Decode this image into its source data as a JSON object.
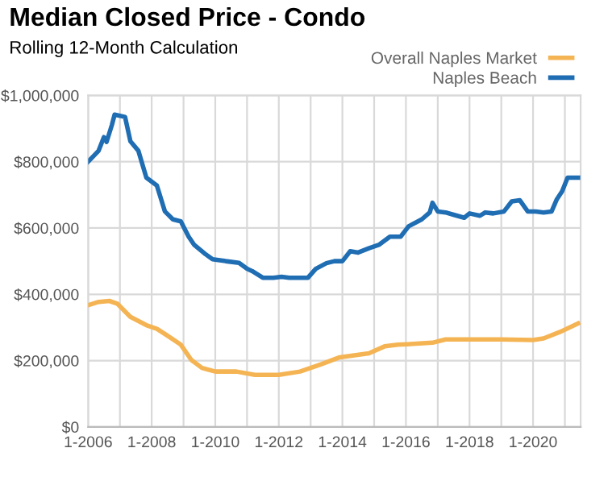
{
  "chart_data": {
    "type": "line",
    "title": "Median Closed Price - Condo",
    "subtitle": "Rolling 12-Month Calculation",
    "series": [
      {
        "name": "Overall Naples Market",
        "color": "#f5b453",
        "x": [
          "2006-01",
          "2006-05",
          "2006-09",
          "2006-12",
          "2007-05",
          "2007-11",
          "2008-03",
          "2008-07",
          "2008-12",
          "2009-04",
          "2009-08",
          "2010-01",
          "2010-09",
          "2011-04",
          "2012-01",
          "2012-09",
          "2013-05",
          "2013-12",
          "2014-11",
          "2015-05",
          "2015-10",
          "2016-05",
          "2016-11",
          "2017-04",
          "2018-01",
          "2019-01",
          "2020-01",
          "2020-05",
          "2020-11",
          "2021-06"
        ],
        "values": [
          367000,
          377000,
          380000,
          372000,
          332000,
          307000,
          296000,
          275000,
          248000,
          202000,
          178000,
          167000,
          167000,
          157000,
          157000,
          167000,
          189000,
          210000,
          222000,
          243000,
          248000,
          251000,
          254000,
          264000,
          264000,
          264000,
          262000,
          267000,
          286000,
          312000
        ]
      },
      {
        "name": "Naples Beach",
        "color": "#1f6db3",
        "x": [
          "2006-01",
          "2006-05",
          "2006-07",
          "2006-08",
          "2006-10",
          "2006-11",
          "2007-03",
          "2007-05",
          "2007-08",
          "2007-11",
          "2008-03",
          "2008-06",
          "2008-09",
          "2008-12",
          "2009-03",
          "2009-05",
          "2009-09",
          "2009-12",
          "2010-05",
          "2010-10",
          "2011-01",
          "2011-03",
          "2011-07",
          "2011-11",
          "2012-02",
          "2012-05",
          "2012-12",
          "2013-03",
          "2013-07",
          "2013-10",
          "2014-01",
          "2014-04",
          "2014-07",
          "2014-11",
          "2015-03",
          "2015-07",
          "2015-11",
          "2016-02",
          "2016-07",
          "2016-10",
          "2016-11",
          "2017-01",
          "2017-04",
          "2017-07",
          "2017-11",
          "2018-01",
          "2018-05",
          "2018-07",
          "2018-10",
          "2019-02",
          "2019-05",
          "2019-08",
          "2019-11",
          "2020-02",
          "2020-05",
          "2020-08",
          "2020-10",
          "2020-12",
          "2021-02",
          "2021-06"
        ],
        "values": [
          800000,
          833000,
          874000,
          860000,
          911000,
          942000,
          935000,
          862000,
          833000,
          752000,
          728000,
          650000,
          626000,
          620000,
          574000,
          550000,
          523000,
          506000,
          500000,
          495000,
          477000,
          470000,
          450000,
          450000,
          453000,
          450000,
          450000,
          477000,
          494000,
          500000,
          500000,
          530000,
          526000,
          539000,
          550000,
          574000,
          574000,
          605000,
          626000,
          647000,
          676000,
          650000,
          647000,
          640000,
          631000,
          644000,
          637000,
          647000,
          644000,
          650000,
          680000,
          684000,
          650000,
          650000,
          647000,
          650000,
          687000,
          711000,
          752000,
          752000
        ]
      }
    ],
    "xlim": [
      "2006-01",
      "2021-07"
    ],
    "xticks": [
      {
        "value": "2006-01",
        "label": "1-2006"
      },
      {
        "value": "2007-01",
        "label": null
      },
      {
        "value": "2008-01",
        "label": "1-2008"
      },
      {
        "value": "2009-01",
        "label": null
      },
      {
        "value": "2010-01",
        "label": "1-2010"
      },
      {
        "value": "2011-01",
        "label": null
      },
      {
        "value": "2012-01",
        "label": "1-2012"
      },
      {
        "value": "2013-01",
        "label": null
      },
      {
        "value": "2014-01",
        "label": "1-2014"
      },
      {
        "value": "2015-01",
        "label": null
      },
      {
        "value": "2016-01",
        "label": "1-2016"
      },
      {
        "value": "2017-01",
        "label": null
      },
      {
        "value": "2018-01",
        "label": "1-2018"
      },
      {
        "value": "2019-01",
        "label": null
      },
      {
        "value": "2020-01",
        "label": "1-2020"
      },
      {
        "value": "2021-01",
        "label": null
      }
    ],
    "ylim": [
      0,
      1000000
    ],
    "yticks": [
      {
        "value": 0,
        "label": "$0"
      },
      {
        "value": 200000,
        "label": "$200,000"
      },
      {
        "value": 400000,
        "label": "$400,000"
      },
      {
        "value": 600000,
        "label": "$600,000"
      },
      {
        "value": 800000,
        "label": "$800,000"
      },
      {
        "value": 1000000,
        "label": "$1,000,000"
      }
    ],
    "grid": true,
    "legend": "top right",
    "line_style": "solid"
  }
}
